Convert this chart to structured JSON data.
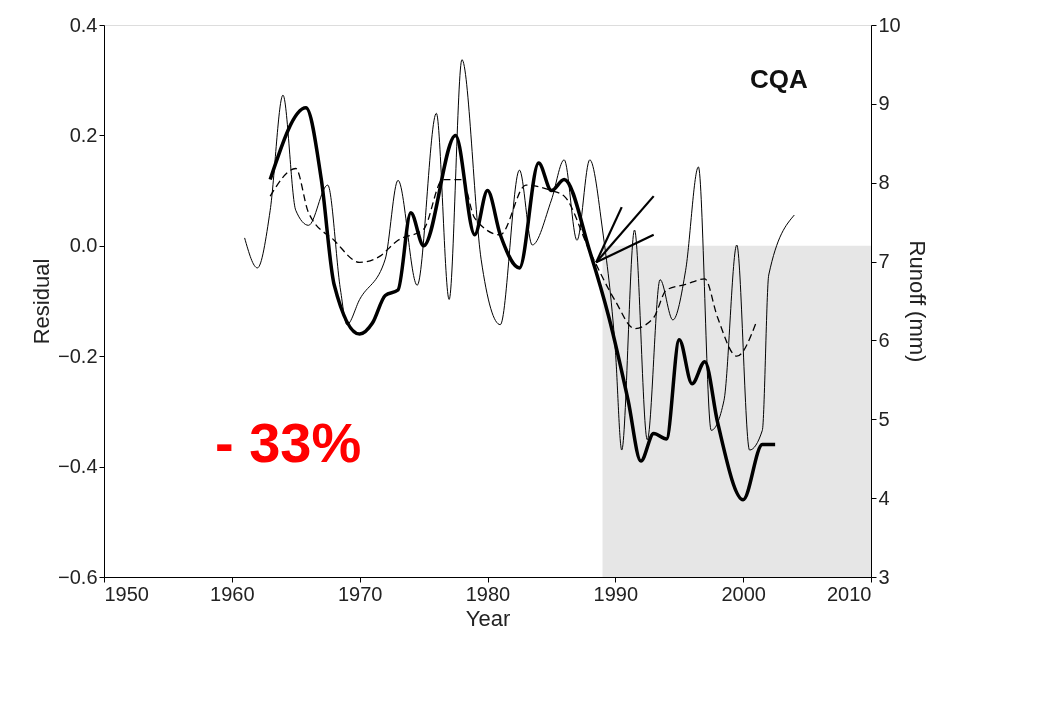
{
  "chart_data": {
    "type": "line",
    "xlabel": "Year",
    "ylabel": "Residual",
    "y2label": "Runoff (mm)",
    "xlim": [
      1950,
      2010
    ],
    "xticks": [
      1950,
      1960,
      1970,
      1980,
      1990,
      2000,
      2010
    ],
    "ylim": [
      -0.6,
      0.4
    ],
    "yticks": [
      -0.6,
      -0.4,
      -0.2,
      {
        "value": 0,
        "label": "0.0"
      },
      0.2,
      0.4
    ],
    "y2lim": [
      3,
      10
    ],
    "y2ticks": [
      3,
      4,
      5,
      6,
      7,
      8,
      9,
      10
    ],
    "grid": false,
    "marker": "none",
    "bands": [
      {
        "axis": "x",
        "from": 1989,
        "to": 2010,
        "color": "#e0e0e0"
      }
    ],
    "annotations": [
      "CQA",
      "- 33%"
    ],
    "series": [
      {
        "color": "#000000",
        "line_style": "solid",
        "x": [
          1963,
          1965.8,
          1967,
          1968,
          1970,
          1971,
          1972,
          1973,
          1974,
          1975,
          1977.5,
          1979,
          1980,
          1981,
          1982.5,
          1984,
          1985,
          1986,
          1988,
          1989.5,
          1991,
          1992,
          1993,
          1994,
          1995,
          1996,
          1997,
          1998,
          2000,
          2001.5,
          2002.5
        ],
        "values": [
          0.12,
          0.25,
          0.12,
          -0.07,
          -0.16,
          -0.14,
          -0.09,
          -0.08,
          0.06,
          0.0,
          0.2,
          0.02,
          0.1,
          0.02,
          -0.04,
          0.15,
          0.1,
          0.12,
          -0.01,
          -0.13,
          -0.28,
          -0.39,
          -0.34,
          -0.35,
          -0.17,
          -0.25,
          -0.21,
          -0.32,
          -0.46,
          -0.36,
          -0.36
        ]
      },
      {
        "color": "#000000",
        "line_style": "dashed",
        "x": [
          1963,
          1965,
          1966,
          1968,
          1970,
          1971.5,
          1973,
          1975,
          1976.5,
          1978,
          1979,
          1981,
          1983,
          1985,
          1986,
          1988,
          1990,
          1991.5,
          1993,
          1994,
          1995.5,
          1997,
          1998,
          1999.5,
          2001
        ],
        "values": [
          0.09,
          0.14,
          0.06,
          0.01,
          -0.03,
          -0.02,
          0.01,
          0.03,
          0.12,
          0.12,
          0.05,
          0.02,
          0.11,
          0.1,
          0.09,
          -0.01,
          -0.1,
          -0.15,
          -0.13,
          -0.08,
          -0.07,
          -0.06,
          -0.13,
          -0.2,
          -0.14
        ]
      },
      {
        "color": "#000000",
        "line_style": "solid",
        "axis": "y2",
        "x": [
          1961,
          1962,
          1963,
          1964,
          1965,
          1966,
          1967.5,
          1968.5,
          1969,
          1970,
          1972,
          1973,
          1974.5,
          1976,
          1977,
          1978,
          1979.5,
          1981,
          1982.5,
          1983.5,
          1985,
          1986,
          1987,
          1988,
          1989,
          1990,
          1990.5,
          1991.5,
          1992.5,
          1993.5,
          1994.5,
          1995.5,
          1996.5,
          1997.5,
          1998.5,
          1999.5,
          2000.5,
          2001.5,
          2002,
          2004
        ],
        "values": [
          7.3,
          6.92,
          7.65,
          9.11,
          7.65,
          7.46,
          7.97,
          6.64,
          6.2,
          6.52,
          7.03,
          8.03,
          6.7,
          8.88,
          6.52,
          9.56,
          7.03,
          6.2,
          8.16,
          7.21,
          7.78,
          8.29,
          7.27,
          8.29,
          7.4,
          5.88,
          4.61,
          7.4,
          4.74,
          6.77,
          6.26,
          6.89,
          8.2,
          4.86,
          5.24,
          7.21,
          4.61,
          4.86,
          6.83,
          7.59
        ]
      },
      {
        "color": "#000000",
        "line_style": "solid",
        "x": [
          1988.5,
          1993
        ],
        "values": [
          -0.03,
          0.09
        ]
      },
      {
        "color": "#000000",
        "line_style": "solid",
        "x": [
          1988.5,
          1993
        ],
        "values": [
          -0.03,
          0.02
        ]
      },
      {
        "color": "#000000",
        "line_style": "solid",
        "x": [
          1988.5,
          1990.5
        ],
        "values": [
          -0.03,
          0.07
        ]
      }
    ]
  }
}
